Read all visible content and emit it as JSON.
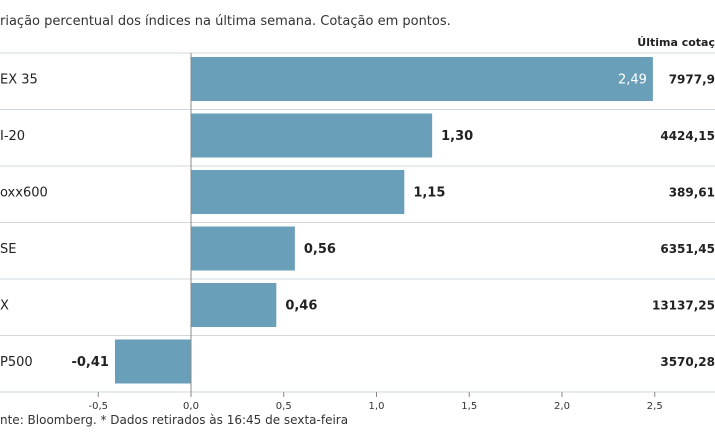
{
  "subtitle": "riação percentual dos índices na última semana. Cotação em pontos.",
  "column_header": "Última cotaç",
  "footer": "nte: Bloomberg.  * Dados retirados às 16:45 de sexta-feira",
  "colors": {
    "bar": "#6a9fba",
    "grid": "#cfd8de",
    "axis": "#888888"
  },
  "chart_data": {
    "type": "bar",
    "orientation": "horizontal",
    "categories": [
      "EX 35",
      "I-20",
      "oxx600",
      "SE",
      "X",
      "P500"
    ],
    "values": [
      2.49,
      1.3,
      1.15,
      0.56,
      0.46,
      -0.41
    ],
    "value_labels": [
      "2,49",
      "1,30",
      "1,15",
      "0,56",
      "0,46",
      "-0,41"
    ],
    "quotes": [
      "7977,9",
      "4424,15",
      "389,61",
      "6351,45",
      "13137,25",
      "3570,28"
    ],
    "xlim": [
      -0.5,
      2.5
    ],
    "xticks": [
      -0.5,
      0.0,
      0.5,
      1.0,
      1.5,
      2.0,
      2.5
    ],
    "xtick_labels": [
      "-0,5",
      "0,0",
      "0,5",
      "1,0",
      "1,5",
      "2,0",
      "2,5"
    ],
    "grid": true
  }
}
